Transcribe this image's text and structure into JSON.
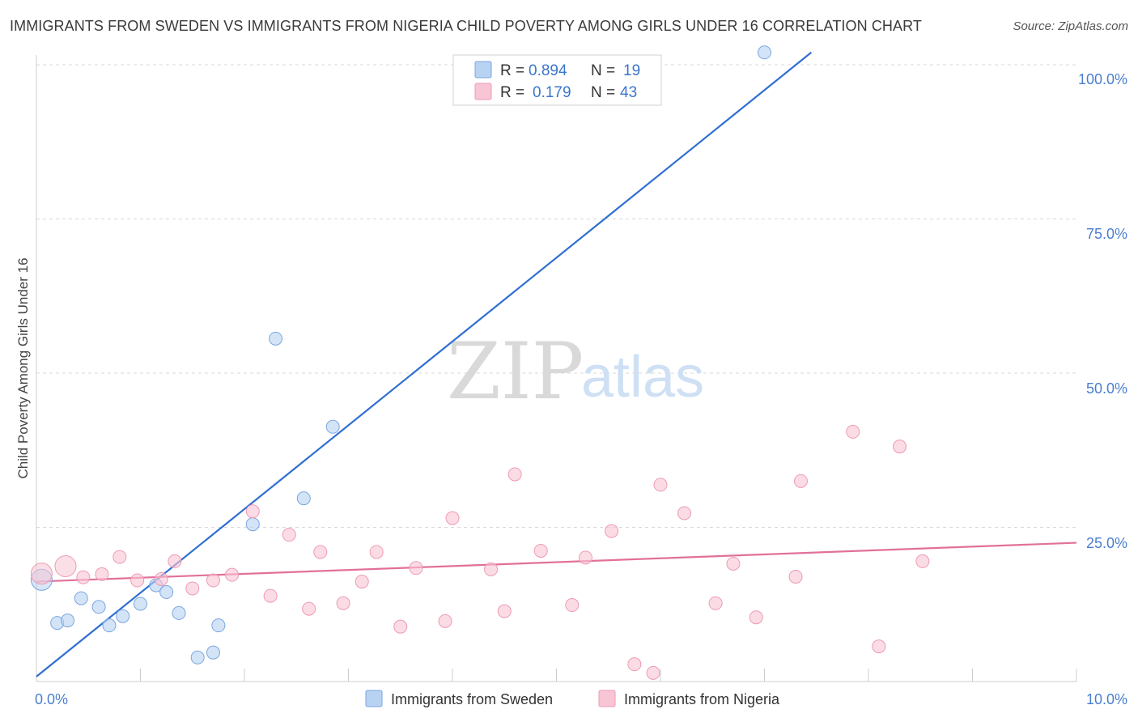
{
  "title": "IMMIGRANTS FROM SWEDEN VS IMMIGRANTS FROM NIGERIA CHILD POVERTY AMONG GIRLS UNDER 16 CORRELATION CHART",
  "source": "Source: ZipAtlas.com",
  "watermark": {
    "zip": "ZIP",
    "atlas": "atlas"
  },
  "colors": {
    "sweden_fill": "#b8d2f2",
    "sweden_stroke": "#7ba6e0",
    "sweden_line": "#2f6fd0",
    "nigeria_fill": "#f8c5d4",
    "nigeria_stroke": "#ee9ab4",
    "nigeria_line": "#e2709a",
    "grid": "#d8d8d8",
    "tick_label": "#4a7fd0"
  },
  "legend": {
    "rows": [
      {
        "r_label": "R =",
        "r_value": "0.894",
        "n_label": "N =",
        "n_value": "19",
        "series": "sweden"
      },
      {
        "r_label": "R =",
        "r_value": "0.179",
        "n_label": "N =",
        "n_value": "43",
        "series": "nigeria"
      }
    ]
  },
  "chart_data": {
    "type": "scatter",
    "xlabel": "",
    "ylabel": "Child Poverty Among Girls Under 16",
    "xlim": [
      0,
      10
    ],
    "ylim": [
      0,
      100
    ],
    "x_tick_labels": [
      "0.0%",
      "10.0%"
    ],
    "y_tick_labels": [
      "100.0%",
      "75.0%",
      "50.0%",
      "25.0%"
    ],
    "y_ticks": [
      100,
      75,
      50,
      25
    ],
    "legend_position": "bottom",
    "series": [
      {
        "name": "Immigrants from Sweden",
        "color_key": "sweden",
        "points": [
          {
            "x": 0.05,
            "y": 16.5,
            "big": true
          },
          {
            "x": 0.2,
            "y": 9.5
          },
          {
            "x": 0.3,
            "y": 9.9
          },
          {
            "x": 0.43,
            "y": 13.5
          },
          {
            "x": 0.6,
            "y": 12.1
          },
          {
            "x": 0.7,
            "y": 9.1
          },
          {
            "x": 0.83,
            "y": 10.6
          },
          {
            "x": 1.0,
            "y": 12.6
          },
          {
            "x": 1.15,
            "y": 15.6
          },
          {
            "x": 1.25,
            "y": 14.5
          },
          {
            "x": 1.37,
            "y": 11.1
          },
          {
            "x": 1.55,
            "y": 3.9
          },
          {
            "x": 1.7,
            "y": 4.7
          },
          {
            "x": 1.75,
            "y": 9.1
          },
          {
            "x": 2.08,
            "y": 25.5
          },
          {
            "x": 2.3,
            "y": 55.6
          },
          {
            "x": 2.57,
            "y": 29.7
          },
          {
            "x": 2.85,
            "y": 41.3
          },
          {
            "x": 7.0,
            "y": 102.0
          }
        ],
        "trend": {
          "x1": 0.0,
          "y1": 0.8,
          "x2": 7.45,
          "y2": 102.0
        }
      },
      {
        "name": "Immigrants from Nigeria",
        "color_key": "nigeria",
        "points": [
          {
            "x": 0.05,
            "y": 17.5,
            "big": true
          },
          {
            "x": 0.28,
            "y": 18.7,
            "big": true
          },
          {
            "x": 0.45,
            "y": 16.9
          },
          {
            "x": 0.63,
            "y": 17.4
          },
          {
            "x": 0.8,
            "y": 20.2
          },
          {
            "x": 0.97,
            "y": 16.4
          },
          {
            "x": 1.2,
            "y": 16.6
          },
          {
            "x": 1.33,
            "y": 19.5
          },
          {
            "x": 1.5,
            "y": 15.1
          },
          {
            "x": 1.7,
            "y": 16.4
          },
          {
            "x": 1.88,
            "y": 17.3
          },
          {
            "x": 2.08,
            "y": 27.6
          },
          {
            "x": 2.25,
            "y": 13.9
          },
          {
            "x": 2.43,
            "y": 23.8
          },
          {
            "x": 2.62,
            "y": 11.8
          },
          {
            "x": 2.73,
            "y": 21.0
          },
          {
            "x": 2.95,
            "y": 12.7
          },
          {
            "x": 3.13,
            "y": 16.2
          },
          {
            "x": 3.27,
            "y": 21.0
          },
          {
            "x": 3.5,
            "y": 8.9
          },
          {
            "x": 3.65,
            "y": 18.4
          },
          {
            "x": 3.93,
            "y": 9.8
          },
          {
            "x": 4.0,
            "y": 26.5
          },
          {
            "x": 4.37,
            "y": 18.2
          },
          {
            "x": 4.5,
            "y": 11.4
          },
          {
            "x": 4.6,
            "y": 33.6
          },
          {
            "x": 4.85,
            "y": 21.2
          },
          {
            "x": 5.15,
            "y": 12.4
          },
          {
            "x": 5.28,
            "y": 20.1
          },
          {
            "x": 5.53,
            "y": 24.4
          },
          {
            "x": 5.75,
            "y": 2.8
          },
          {
            "x": 5.93,
            "y": 1.4
          },
          {
            "x": 6.0,
            "y": 31.9
          },
          {
            "x": 6.23,
            "y": 27.3
          },
          {
            "x": 6.53,
            "y": 12.7
          },
          {
            "x": 6.7,
            "y": 19.1
          },
          {
            "x": 6.92,
            "y": 10.4
          },
          {
            "x": 7.3,
            "y": 17.0
          },
          {
            "x": 7.35,
            "y": 32.5
          },
          {
            "x": 7.85,
            "y": 40.5
          },
          {
            "x": 8.1,
            "y": 5.7
          },
          {
            "x": 8.3,
            "y": 38.1
          },
          {
            "x": 8.52,
            "y": 19.5
          }
        ],
        "trend": {
          "x1": 0.0,
          "y1": 16.2,
          "x2": 10.0,
          "y2": 22.5
        }
      }
    ]
  }
}
